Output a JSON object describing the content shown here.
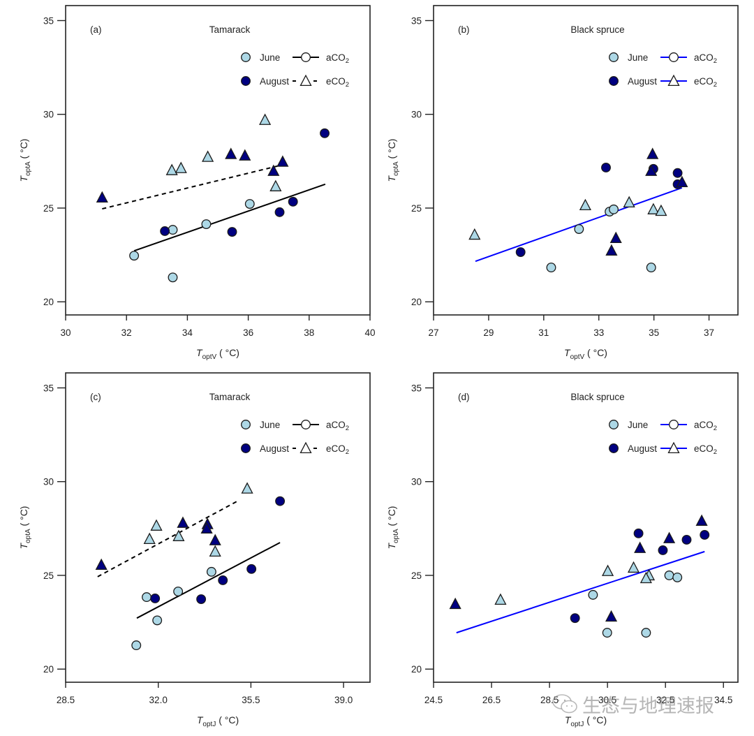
{
  "colors": {
    "june_fill": "#add8e6",
    "august_fill": "#000080",
    "marker_stroke": "#1a1a1a",
    "tamarack_line": "#000000",
    "black_spruce_line": "#0000ff",
    "frame": "#222222"
  },
  "watermark": {
    "text": "生态与地理速报",
    "icon": "wechat-icon"
  },
  "chart_data": [
    {
      "id": "a",
      "type": "scatter",
      "panel_label": "(a)",
      "title": "Tamarack",
      "xlabel_main": "T",
      "xlabel_sub": "optV",
      "xlabel_unit": "( °C)",
      "ylabel_main": "T",
      "ylabel_sub": "optA",
      "ylabel_unit": "( °C)",
      "xlim": [
        30,
        40
      ],
      "ylim": [
        19.3,
        35.8
      ],
      "xticks": [
        30,
        32,
        34,
        36,
        38,
        40
      ],
      "xtick_labels": [
        "30",
        "32",
        "34",
        "36",
        "38",
        "40"
      ],
      "yticks": [
        20,
        25,
        30,
        35
      ],
      "ytick_labels": [
        "20",
        "25",
        "30",
        "35"
      ],
      "grid": false,
      "legend_position": "top-right",
      "legend": {
        "months": [
          {
            "label": "June",
            "marker": "circle-light"
          },
          {
            "label": "August",
            "marker": "circle-dark"
          }
        ],
        "treatments": [
          {
            "label": "aCO",
            "sub": "2",
            "line": "solid",
            "marker": "circle-open"
          },
          {
            "label": "eCO",
            "sub": "2",
            "line": "dashed",
            "marker": "triangle-open"
          }
        ]
      },
      "line_color_key": "tamarack_line",
      "series": [
        {
          "name": "June aCO2",
          "month": "June",
          "treatment": "aCO2",
          "marker": "circle",
          "points": [
            [
              32.25,
              22.46
            ],
            [
              33.52,
              21.3
            ],
            [
              33.52,
              23.84
            ],
            [
              34.62,
              24.14
            ],
            [
              36.05,
              25.22
            ]
          ]
        },
        {
          "name": "August aCO2",
          "month": "August",
          "treatment": "aCO2",
          "marker": "circle",
          "points": [
            [
              33.26,
              23.77
            ],
            [
              35.47,
              23.73
            ],
            [
              37.03,
              24.78
            ],
            [
              37.47,
              25.34
            ],
            [
              38.51,
              28.99
            ]
          ]
        },
        {
          "name": "June eCO2",
          "month": "June",
          "treatment": "eCO2",
          "marker": "triangle",
          "points": [
            [
              33.49,
              26.98
            ],
            [
              33.79,
              27.09
            ],
            [
              34.67,
              27.69
            ],
            [
              36.55,
              29.66
            ],
            [
              36.9,
              26.12
            ]
          ]
        },
        {
          "name": "August eCO2",
          "month": "August",
          "treatment": "eCO2",
          "marker": "triangle",
          "points": [
            [
              31.2,
              25.52
            ],
            [
              35.43,
              27.84
            ],
            [
              35.89,
              27.76
            ],
            [
              36.83,
              26.94
            ],
            [
              37.13,
              27.43
            ]
          ]
        }
      ],
      "fit_lines": [
        {
          "name": "aCO2 fit",
          "style": "solid",
          "from": [
            32.25,
            22.72
          ],
          "to": [
            38.53,
            26.27
          ]
        },
        {
          "name": "eCO2 fit",
          "style": "dashed",
          "from": [
            31.2,
            24.96
          ],
          "to": [
            37.06,
            27.28
          ]
        }
      ]
    },
    {
      "id": "b",
      "type": "scatter",
      "panel_label": "(b)",
      "title": "Black spruce",
      "xlabel_main": "T",
      "xlabel_sub": "optV",
      "xlabel_unit": "( °C)",
      "ylabel_main": "T",
      "ylabel_sub": "optA",
      "ylabel_unit": "( °C)",
      "xlim": [
        27,
        38.05
      ],
      "ylim": [
        19.3,
        35.8
      ],
      "xticks": [
        27,
        29,
        31,
        33,
        35,
        37
      ],
      "xtick_labels": [
        "27",
        "29",
        "31",
        "33",
        "35",
        "37"
      ],
      "yticks": [
        20,
        25,
        30,
        35
      ],
      "ytick_labels": [
        "20",
        "25",
        "30",
        "35"
      ],
      "grid": false,
      "legend_position": "top-right",
      "legend": {
        "months": [
          {
            "label": "June",
            "marker": "circle-light"
          },
          {
            "label": "August",
            "marker": "circle-dark"
          }
        ],
        "treatments": [
          {
            "label": "aCO",
            "sub": "2",
            "line": "solid",
            "marker": "circle-open"
          },
          {
            "label": "eCO",
            "sub": "2",
            "line": "solid",
            "marker": "triangle-open"
          }
        ]
      },
      "line_color_key": "black_spruce_line",
      "series": [
        {
          "name": "June aCO2",
          "month": "June",
          "treatment": "aCO2",
          "marker": "circle",
          "points": [
            [
              31.27,
              21.83
            ],
            [
              32.28,
              23.88
            ],
            [
              33.39,
              24.81
            ],
            [
              33.54,
              24.93
            ],
            [
              34.9,
              21.83
            ]
          ]
        },
        {
          "name": "August aCO2",
          "month": "August",
          "treatment": "aCO2",
          "marker": "circle",
          "points": [
            [
              30.16,
              22.65
            ],
            [
              33.26,
              27.16
            ],
            [
              34.98,
              27.09
            ],
            [
              35.86,
              26.87
            ],
            [
              35.86,
              26.27
            ]
          ]
        },
        {
          "name": "June eCO2",
          "month": "June",
          "treatment": "eCO2",
          "marker": "triangle",
          "points": [
            [
              28.49,
              23.54
            ],
            [
              32.51,
              25.11
            ],
            [
              34.1,
              25.26
            ],
            [
              34.98,
              24.89
            ],
            [
              35.26,
              24.81
            ]
          ]
        },
        {
          "name": "August eCO2",
          "month": "August",
          "treatment": "eCO2",
          "marker": "triangle",
          "points": [
            [
              33.46,
              22.69
            ],
            [
              33.62,
              23.36
            ],
            [
              34.95,
              27.84
            ],
            [
              34.9,
              26.94
            ],
            [
              36.02,
              26.34
            ]
          ]
        }
      ],
      "fit_lines": [
        {
          "name": "pooled fit",
          "style": "solid",
          "from": [
            28.52,
            22.16
          ],
          "to": [
            36.02,
            26.08
          ]
        }
      ]
    },
    {
      "id": "c",
      "type": "scatter",
      "panel_label": "(c)",
      "title": "Tamarack",
      "xlabel_main": "T",
      "xlabel_sub": "optJ",
      "xlabel_unit": "( °C)",
      "ylabel_main": "T",
      "ylabel_sub": "optA",
      "ylabel_unit": "( °C)",
      "xlim": [
        28.5,
        40.0
      ],
      "ylim": [
        19.3,
        35.8
      ],
      "xticks": [
        28.5,
        32.0,
        35.5,
        39.0
      ],
      "xtick_labels": [
        "28.5",
        "32.0",
        "35.5",
        "39.0"
      ],
      "yticks": [
        20,
        25,
        30,
        35
      ],
      "ytick_labels": [
        "20",
        "25",
        "30",
        "35"
      ],
      "grid": false,
      "legend_position": "top-right",
      "legend": {
        "months": [
          {
            "label": "June",
            "marker": "circle-light"
          },
          {
            "label": "August",
            "marker": "circle-dark"
          }
        ],
        "treatments": [
          {
            "label": "aCO",
            "sub": "2",
            "line": "solid",
            "marker": "circle-open"
          },
          {
            "label": "eCO",
            "sub": "2",
            "line": "dashed",
            "marker": "triangle-open"
          }
        ]
      },
      "line_color_key": "tamarack_line",
      "series": [
        {
          "name": "June aCO2",
          "month": "June",
          "treatment": "aCO2",
          "marker": "circle",
          "points": [
            [
              31.17,
              21.27
            ],
            [
              31.96,
              22.6
            ],
            [
              31.56,
              23.84
            ],
            [
              32.75,
              24.14
            ],
            [
              34.01,
              25.19
            ]
          ]
        },
        {
          "name": "August aCO2",
          "month": "August",
          "treatment": "aCO2",
          "marker": "circle",
          "points": [
            [
              31.88,
              23.77
            ],
            [
              33.62,
              23.73
            ],
            [
              34.44,
              24.74
            ],
            [
              35.52,
              25.34
            ],
            [
              36.6,
              28.96
            ]
          ]
        },
        {
          "name": "June eCO2",
          "month": "June",
          "treatment": "eCO2",
          "marker": "triangle",
          "points": [
            [
              31.67,
              26.9
            ],
            [
              31.93,
              27.61
            ],
            [
              32.77,
              27.05
            ],
            [
              34.15,
              26.23
            ],
            [
              35.36,
              29.59
            ]
          ]
        },
        {
          "name": "August eCO2",
          "month": "August",
          "treatment": "eCO2",
          "marker": "triangle",
          "points": [
            [
              29.85,
              25.52
            ],
            [
              32.93,
              27.76
            ],
            [
              33.86,
              27.69
            ],
            [
              33.83,
              27.46
            ],
            [
              34.15,
              26.83
            ]
          ]
        }
      ],
      "fit_lines": [
        {
          "name": "aCO2 fit",
          "style": "solid",
          "from": [
            31.19,
            22.72
          ],
          "to": [
            36.6,
            26.75
          ]
        },
        {
          "name": "eCO2 fit",
          "style": "dashed",
          "from": [
            29.71,
            24.93
          ],
          "to": [
            34.99,
            28.96
          ]
        }
      ]
    },
    {
      "id": "d",
      "type": "scatter",
      "panel_label": "(d)",
      "title": "Black spruce",
      "xlabel_main": "T",
      "xlabel_sub": "optJ",
      "xlabel_unit": "( °C)",
      "ylabel_main": "T",
      "ylabel_sub": "optA",
      "ylabel_unit": "( °C)",
      "xlim": [
        24.5,
        35.0
      ],
      "ylim": [
        19.3,
        35.8
      ],
      "xticks": [
        24.5,
        26.5,
        28.5,
        30.5,
        32.5,
        34.5
      ],
      "xtick_labels": [
        "24.5",
        "26.5",
        "28.5",
        "30.5",
        "32.5",
        "34.5"
      ],
      "yticks": [
        20,
        25,
        30,
        35
      ],
      "ytick_labels": [
        "20",
        "25",
        "30",
        "35"
      ],
      "grid": false,
      "legend_position": "top-right",
      "legend": {
        "months": [
          {
            "label": "June",
            "marker": "circle-light"
          },
          {
            "label": "August",
            "marker": "circle-dark"
          }
        ],
        "treatments": [
          {
            "label": "aCO",
            "sub": "2",
            "line": "solid",
            "marker": "circle-open"
          },
          {
            "label": "eCO",
            "sub": "2",
            "line": "solid",
            "marker": "triangle-open"
          }
        ]
      },
      "line_color_key": "black_spruce_line",
      "series": [
        {
          "name": "June aCO2",
          "month": "June",
          "treatment": "aCO2",
          "marker": "circle",
          "points": [
            [
              30.0,
              23.96
            ],
            [
              30.49,
              21.94
            ],
            [
              31.83,
              21.94
            ],
            [
              32.63,
              25.0
            ],
            [
              32.91,
              24.89
            ]
          ]
        },
        {
          "name": "August aCO2",
          "month": "August",
          "treatment": "aCO2",
          "marker": "circle",
          "points": [
            [
              29.38,
              22.72
            ],
            [
              31.57,
              27.24
            ],
            [
              32.41,
              26.34
            ],
            [
              33.23,
              26.9
            ],
            [
              33.85,
              27.16
            ]
          ]
        },
        {
          "name": "June eCO2",
          "month": "June",
          "treatment": "eCO2",
          "marker": "triangle",
          "points": [
            [
              26.81,
              23.66
            ],
            [
              30.51,
              25.19
            ],
            [
              31.4,
              25.37
            ],
            [
              31.93,
              24.96
            ],
            [
              31.83,
              24.81
            ]
          ]
        },
        {
          "name": "August eCO2",
          "month": "August",
          "treatment": "eCO2",
          "marker": "triangle",
          "points": [
            [
              25.25,
              23.43
            ],
            [
              30.63,
              22.76
            ],
            [
              31.62,
              26.42
            ],
            [
              32.63,
              26.94
            ],
            [
              33.75,
              27.87
            ]
          ]
        }
      ],
      "fit_lines": [
        {
          "name": "pooled fit",
          "style": "solid",
          "from": [
            25.29,
            21.94
          ],
          "to": [
            33.85,
            26.27
          ]
        }
      ]
    }
  ]
}
